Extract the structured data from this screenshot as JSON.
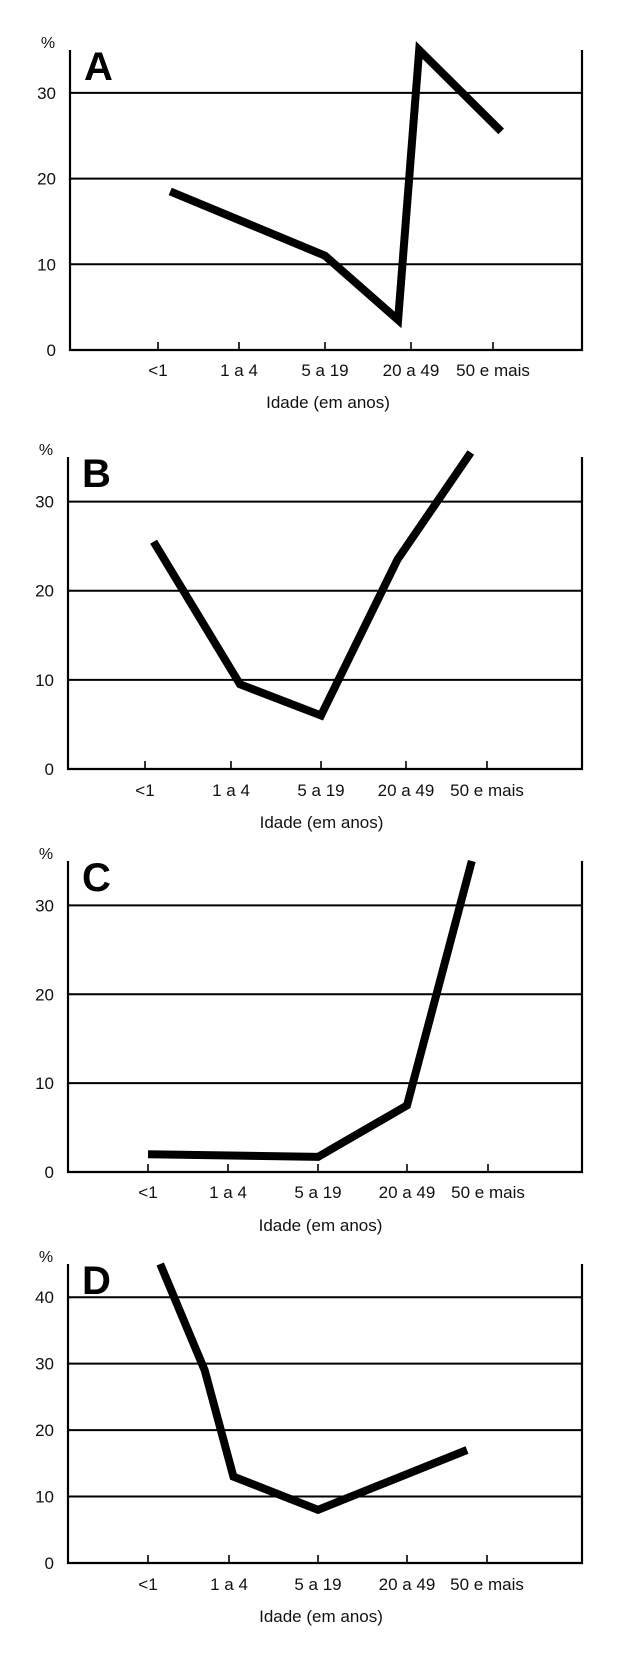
{
  "chart_data": [
    {
      "type": "line",
      "panel": "A",
      "unit": "%",
      "xlabel": "Idade (em anos)",
      "categories": [
        "<1",
        "1 a 4",
        "5 a 19",
        "20 a 49",
        "50 e mais"
      ],
      "ylim": [
        0,
        35
      ],
      "yticks": [
        0,
        10,
        20,
        30
      ],
      "grid": true,
      "series": [
        {
          "x": [
            1.15,
            3.0,
            3.85,
            4.1,
            5.1
          ],
          "y": [
            18.5,
            11,
            3.5,
            35,
            25.5
          ]
        }
      ]
    },
    {
      "type": "line",
      "panel": "B",
      "unit": "%",
      "xlabel": "Idade (em anos)",
      "categories": [
        "<1",
        "1 a 4",
        "5 a 19",
        "20 a 49",
        "50 e mais"
      ],
      "ylim": [
        0,
        35
      ],
      "yticks": [
        0,
        10,
        20,
        30
      ],
      "grid": true,
      "series": [
        {
          "x": [
            1.1,
            2.1,
            3.0,
            3.9,
            4.8
          ],
          "y": [
            25.5,
            9.5,
            6,
            23.5,
            35.5
          ]
        }
      ]
    },
    {
      "type": "line",
      "panel": "C",
      "unit": "%",
      "xlabel": "Idade (em anos)",
      "categories": [
        "<1",
        "1 a 4",
        "5 a 19",
        "20 a 49",
        "50 e mais"
      ],
      "ylim": [
        0,
        35
      ],
      "yticks": [
        0,
        10,
        20,
        30
      ],
      "grid": true,
      "series": [
        {
          "x": [
            1.0,
            3.0,
            4.0,
            4.8
          ],
          "y": [
            2,
            1.7,
            7.5,
            35
          ]
        }
      ]
    },
    {
      "type": "line",
      "panel": "D",
      "unit": "%",
      "xlabel": "Idade (em anos)",
      "categories": [
        "<1",
        "1 a 4",
        "5 a 19",
        "20 a 49",
        "50 e mais"
      ],
      "ylim": [
        0,
        45
      ],
      "yticks": [
        0,
        10,
        20,
        30,
        40
      ],
      "grid": true,
      "series": [
        {
          "x": [
            1.15,
            1.7,
            2.05,
            3.0,
            4.75
          ],
          "y": [
            45,
            29,
            13,
            8,
            17
          ]
        }
      ]
    }
  ]
}
